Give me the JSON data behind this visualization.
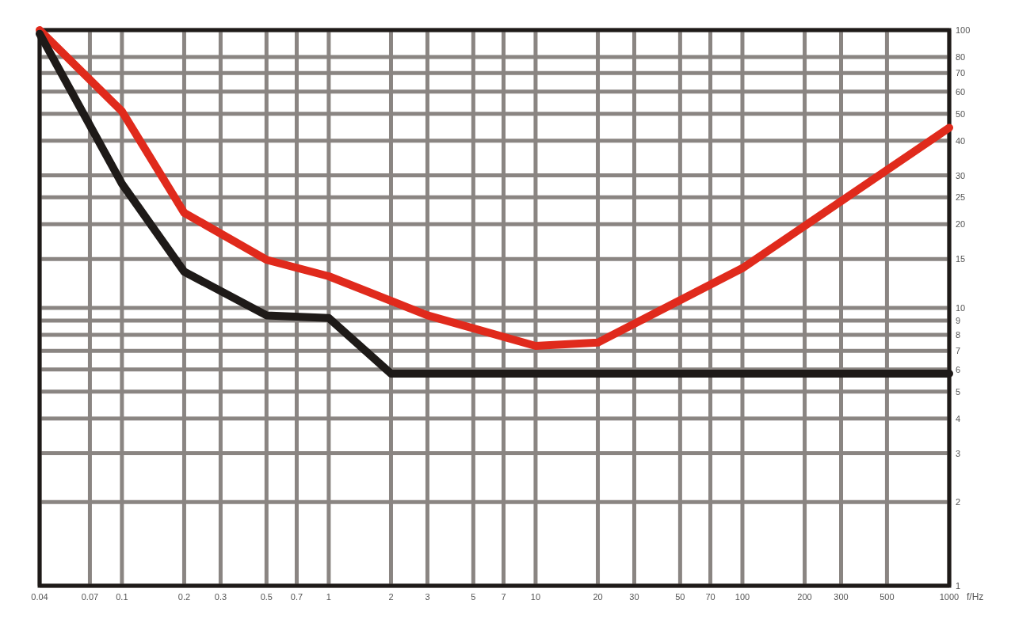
{
  "chart_data": {
    "type": "line",
    "xlabel": "f/Hz",
    "log": "xy",
    "grid": true,
    "line_style": "solid",
    "xlim": [
      0.04,
      1000
    ],
    "xticks": [
      0.04,
      0.07,
      0.1,
      0.2,
      0.3,
      0.5,
      0.7,
      1,
      2,
      3,
      5,
      7,
      10,
      20,
      30,
      50,
      70,
      100,
      200,
      300,
      500,
      1000
    ],
    "ylim": [
      1,
      100
    ],
    "yticks": [
      1,
      2,
      3,
      4,
      5,
      6,
      7,
      8,
      9,
      10,
      15,
      20,
      25,
      30,
      40,
      50,
      60,
      70,
      80,
      100
    ],
    "series": [
      {
        "color": "#e02a1c",
        "x": [
          0.04,
          0.1,
          0.2,
          0.5,
          1,
          3,
          10,
          20,
          100,
          1000
        ],
        "values": [
          100,
          51,
          22,
          14.9,
          13,
          9.4,
          7.3,
          7.5,
          13.9,
          44.5
        ]
      },
      {
        "color": "#1e1a18",
        "x": [
          0.04,
          0.1,
          0.2,
          0.5,
          1,
          2,
          10,
          1000
        ],
        "values": [
          97,
          28,
          13.5,
          9.4,
          9.2,
          5.8,
          5.8,
          5.8
        ]
      }
    ]
  }
}
